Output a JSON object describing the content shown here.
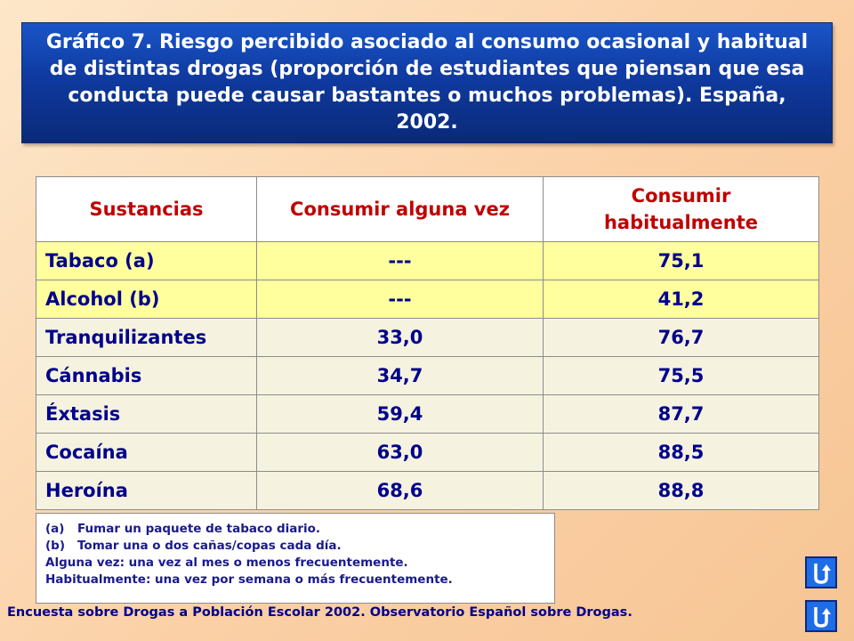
{
  "title": "Gráfico 7. Riesgo percibido asociado al consumo ocasional y habitual de distintas drogas (proporción de estudiantes que piensan que esa conducta puede causar bastantes o muchos problemas). España, 2002.",
  "table": {
    "headers": [
      "Sustancias",
      "Consumir alguna vez",
      "Consumir habitualmente"
    ],
    "rows": [
      {
        "name": "Tabaco (a)",
        "ocasional": "---",
        "habitual": "75,1"
      },
      {
        "name": "Alcohol (b)",
        "ocasional": "---",
        "habitual": "41,2"
      },
      {
        "name": "Tranquilizantes",
        "ocasional": "33,0",
        "habitual": "76,7"
      },
      {
        "name": "Cánnabis",
        "ocasional": "34,7",
        "habitual": "75,5"
      },
      {
        "name": "Éxtasis",
        "ocasional": "59,4",
        "habitual": "87,7"
      },
      {
        "name": "Cocaína",
        "ocasional": "63,0",
        "habitual": "88,5"
      },
      {
        "name": "Heroína",
        "ocasional": "68,6",
        "habitual": "88,8"
      }
    ]
  },
  "notes": {
    "a_mark": "(a)",
    "a_text": "Fumar un paquete de tabaco diario.",
    "b_mark": "(b)",
    "b_text": "Tomar una o dos cañas/copas cada día.",
    "alguna": "Alguna vez: una vez al mes o menos frecuentemente.",
    "habitual": "Habitualmente: una vez por semana o más frecuentemente."
  },
  "source": "Encuesta sobre Drogas a Población Escolar 2002. Observatorio Español sobre Drogas.",
  "nav": {
    "icon": "return-arrow-icon",
    "color": "#1e6de8"
  }
}
